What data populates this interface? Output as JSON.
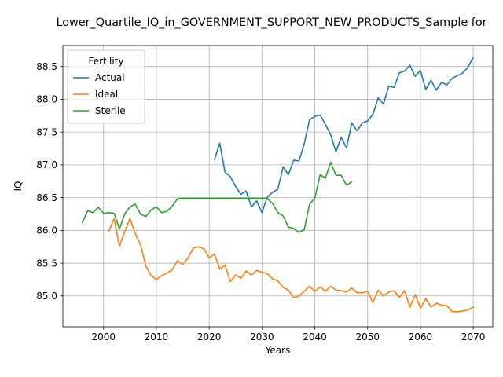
{
  "chart_data": {
    "type": "line",
    "title": "Lower_Quartile_IQ_in_GOVERNMENT_SUPPORT_NEW_PRODUCTS_Sample for",
    "xlabel": "Years",
    "ylabel": "IQ",
    "xlim": [
      1992.3,
      2073.7
    ],
    "ylim": [
      84.53,
      88.82
    ],
    "xticks": [
      2000,
      2010,
      2020,
      2030,
      2040,
      2050,
      2060,
      2070
    ],
    "yticks": [
      85.0,
      85.5,
      86.0,
      86.5,
      87.0,
      87.5,
      88.0,
      88.5
    ],
    "grid": true,
    "legend": {
      "title": "Fertility",
      "placement": "upper left"
    },
    "series": [
      {
        "name": "Actual",
        "color": "#1f77b4",
        "x": [
          2021,
          2022,
          2023,
          2024,
          2025,
          2026,
          2027,
          2028,
          2029,
          2030,
          2031,
          2032,
          2033,
          2034,
          2035,
          2036,
          2037,
          2038,
          2039,
          2040,
          2041,
          2042,
          2043,
          2044,
          2045,
          2046,
          2047,
          2048,
          2049,
          2050,
          2051,
          2052,
          2053,
          2054,
          2055,
          2056,
          2057,
          2058,
          2059,
          2060,
          2061,
          2062,
          2063,
          2064,
          2065,
          2066,
          2067,
          2068,
          2069,
          2070
        ],
        "y": [
          87.08,
          87.33,
          86.89,
          86.82,
          86.67,
          86.55,
          86.6,
          86.36,
          86.45,
          86.27,
          86.51,
          86.58,
          86.63,
          86.97,
          86.85,
          87.07,
          87.06,
          87.32,
          87.69,
          87.74,
          87.76,
          87.62,
          87.46,
          87.2,
          87.42,
          87.26,
          87.64,
          87.52,
          87.64,
          87.67,
          87.77,
          88.02,
          87.93,
          88.2,
          88.18,
          88.4,
          88.43,
          88.52,
          88.35,
          88.44,
          88.15,
          88.29,
          88.14,
          88.26,
          88.22,
          88.32,
          88.36,
          88.4,
          88.49,
          88.64
        ]
      },
      {
        "name": "Ideal",
        "color": "#ff7f0e",
        "x": [
          2001,
          2002,
          2003,
          2004,
          2005,
          2006,
          2007,
          2008,
          2009,
          2010,
          2011,
          2012,
          2013,
          2014,
          2015,
          2016,
          2017,
          2018,
          2019,
          2020,
          2021,
          2022,
          2023,
          2024,
          2025,
          2026,
          2027,
          2028,
          2029,
          2030,
          2031,
          2032,
          2033,
          2034,
          2035,
          2036,
          2037,
          2038,
          2039,
          2040,
          2041,
          2042,
          2043,
          2044,
          2045,
          2046,
          2047,
          2048,
          2049,
          2050,
          2051,
          2052,
          2053,
          2054,
          2055,
          2056,
          2057,
          2058,
          2059,
          2060,
          2061,
          2062,
          2063,
          2064,
          2065,
          2066,
          2067,
          2068,
          2069,
          2070
        ],
        "y": [
          85.99,
          86.18,
          85.76,
          85.98,
          86.18,
          85.95,
          85.78,
          85.46,
          85.31,
          85.25,
          85.31,
          85.35,
          85.4,
          85.54,
          85.48,
          85.58,
          85.73,
          85.75,
          85.72,
          85.58,
          85.64,
          85.41,
          85.47,
          85.22,
          85.32,
          85.27,
          85.38,
          85.32,
          85.39,
          85.36,
          85.34,
          85.26,
          85.23,
          85.13,
          85.09,
          84.97,
          85.0,
          85.07,
          85.15,
          85.07,
          85.14,
          85.07,
          85.15,
          85.09,
          85.08,
          85.06,
          85.12,
          85.05,
          85.05,
          85.07,
          84.9,
          85.09,
          85.0,
          85.06,
          85.08,
          84.98,
          85.08,
          84.83,
          85.02,
          84.81,
          84.96,
          84.83,
          84.89,
          84.86,
          84.85,
          84.76,
          84.76,
          84.77,
          84.79,
          84.83
        ]
      },
      {
        "name": "Sterile",
        "color": "#2ca02c",
        "x": [
          1996,
          1997,
          1998,
          1999,
          2000,
          2001,
          2002,
          2003,
          2004,
          2005,
          2006,
          2007,
          2008,
          2009,
          2010,
          2011,
          2012,
          2013,
          2014,
          2015,
          2016,
          2017,
          2018,
          2019,
          2020,
          2021,
          2022,
          2023,
          2024,
          2025,
          2026,
          2027,
          2028,
          2029,
          2030,
          2031,
          2032,
          2033,
          2034,
          2035,
          2036,
          2037,
          2038,
          2039,
          2040,
          2041,
          2042,
          2043,
          2044,
          2045,
          2046,
          2047
        ],
        "y": [
          86.12,
          86.3,
          86.27,
          86.35,
          86.26,
          86.27,
          86.26,
          86.02,
          86.25,
          86.36,
          86.4,
          86.25,
          86.21,
          86.31,
          86.36,
          86.27,
          86.29,
          86.37,
          86.48,
          86.49,
          86.49,
          86.49,
          86.49,
          86.49,
          86.49,
          86.49,
          86.49,
          86.49,
          86.49,
          86.49,
          86.49,
          86.49,
          86.49,
          86.49,
          86.49,
          86.49,
          86.41,
          86.27,
          86.22,
          86.05,
          86.03,
          85.97,
          86.01,
          86.4,
          86.49,
          86.85,
          86.8,
          87.04,
          86.84,
          86.84,
          86.69,
          86.74
        ]
      }
    ]
  }
}
